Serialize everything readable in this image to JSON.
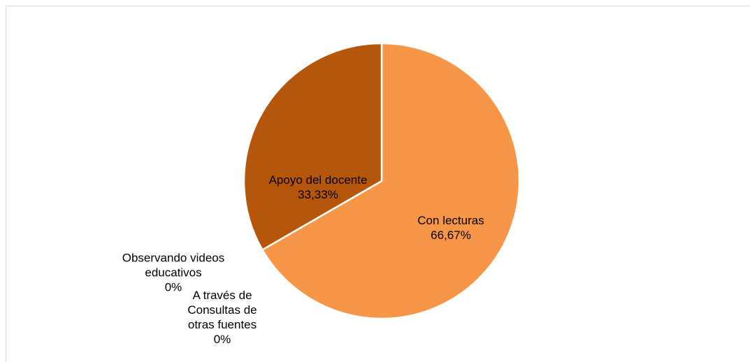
{
  "chart_data": {
    "type": "pie",
    "categories": [
      "Con lecturas",
      "Observando videos educativos",
      "A través de Consultas de otras fuentes",
      "Apoyo del docente"
    ],
    "values": [
      66.67,
      0,
      0,
      33.33
    ],
    "value_labels": [
      "66,67%",
      "0%",
      "0%",
      "33,33%"
    ],
    "colors": [
      "#f79646",
      "#e46c0a",
      "#fac090",
      "#b6560a"
    ]
  }
}
